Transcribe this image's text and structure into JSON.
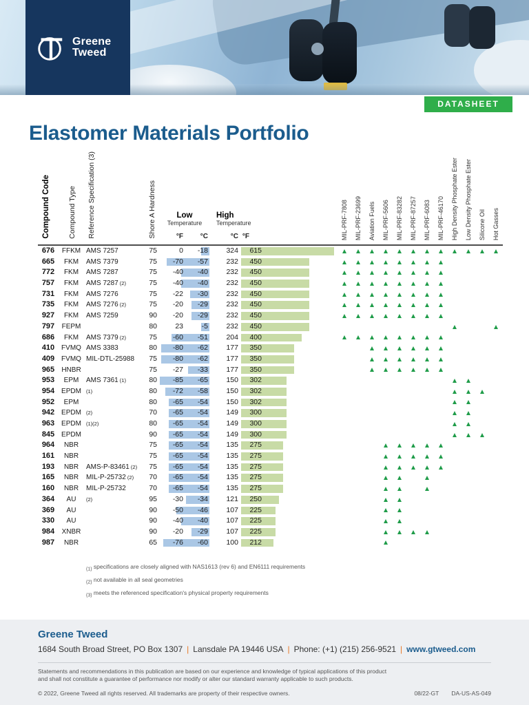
{
  "brand": {
    "line1": "Greene",
    "line2": "Tweed"
  },
  "header": {
    "badge": "DATASHEET",
    "title": "Elastomer Materials Portfolio"
  },
  "colors": {
    "brand_navy": "#16365e",
    "brand_blue": "#1b5c8d",
    "badge_green": "#2fae4a",
    "triangle_green": "#1f9c49",
    "low_bar_blue": "#aac7e5",
    "high_bar_green": "#c8dba6",
    "pipe_orange": "#e87722"
  },
  "table": {
    "columns": {
      "code": "Compound Code",
      "type": "Compound Type",
      "refspec": "Reference Specification (3)",
      "hardness": "Shore A Hardness",
      "low_label": "Low",
      "high_label": "High",
      "temp_label": "Temperature",
      "low_units": [
        "°F",
        "°C"
      ],
      "high_units": [
        "°C",
        "°F"
      ]
    },
    "fluid_columns": [
      "MIL-PRF-7808",
      "MIL-PRF-23699",
      "Aviation Fuels",
      "MIL-PRF-5606",
      "MIL-PRF-83282",
      "MIL-PRF-87257",
      "MIL-PRF-6083",
      "MIL-PRF-46170",
      "High Density Phosphate Ester",
      "Low Density Phosphate Ester",
      "Silicone Oil",
      "Hot Gasses"
    ],
    "rows": [
      {
        "code": "676",
        "type": "FFKM",
        "spec": "AMS 7257",
        "note": "",
        "hardness": 75,
        "low_f": 0,
        "low_c": -18,
        "high_c": 324,
        "high_f": 615,
        "fluids": [
          1,
          1,
          1,
          1,
          1,
          1,
          1,
          1,
          1,
          1,
          1,
          1
        ]
      },
      {
        "code": "665",
        "type": "FKM",
        "spec": "AMS 7379",
        "note": "",
        "hardness": 75,
        "low_f": -70,
        "low_c": -57,
        "high_c": 232,
        "high_f": 450,
        "fluids": [
          1,
          1,
          1,
          1,
          1,
          1,
          1,
          1,
          0,
          0,
          0,
          0
        ]
      },
      {
        "code": "772",
        "type": "FKM",
        "spec": "AMS 7287",
        "note": "",
        "hardness": 75,
        "low_f": -40,
        "low_c": -40,
        "high_c": 232,
        "high_f": 450,
        "fluids": [
          1,
          1,
          1,
          1,
          1,
          1,
          1,
          1,
          0,
          0,
          0,
          0
        ]
      },
      {
        "code": "757",
        "type": "FKM",
        "spec": "AMS 7287",
        "note": "(2)",
        "hardness": 75,
        "low_f": -40,
        "low_c": -40,
        "high_c": 232,
        "high_f": 450,
        "fluids": [
          1,
          1,
          1,
          1,
          1,
          1,
          1,
          1,
          0,
          0,
          0,
          0
        ]
      },
      {
        "code": "731",
        "type": "FKM",
        "spec": "AMS 7276",
        "note": "",
        "hardness": 75,
        "low_f": -22,
        "low_c": -30,
        "high_c": 232,
        "high_f": 450,
        "fluids": [
          1,
          1,
          1,
          1,
          1,
          1,
          1,
          1,
          0,
          0,
          0,
          0
        ]
      },
      {
        "code": "735",
        "type": "FKM",
        "spec": "AMS 7276",
        "note": "(2)",
        "hardness": 75,
        "low_f": -20,
        "low_c": -29,
        "high_c": 232,
        "high_f": 450,
        "fluids": [
          1,
          1,
          1,
          1,
          1,
          1,
          1,
          1,
          0,
          0,
          0,
          0
        ]
      },
      {
        "code": "927",
        "type": "FKM",
        "spec": "AMS 7259",
        "note": "",
        "hardness": 90,
        "low_f": -20,
        "low_c": -29,
        "high_c": 232,
        "high_f": 450,
        "fluids": [
          1,
          1,
          1,
          1,
          1,
          1,
          1,
          1,
          0,
          0,
          0,
          0
        ]
      },
      {
        "code": "797",
        "type": "FEPM",
        "spec": "",
        "note": "",
        "hardness": 80,
        "low_f": 23,
        "low_c": -5,
        "high_c": 232,
        "high_f": 450,
        "fluids": [
          0,
          0,
          0,
          0,
          0,
          0,
          0,
          0,
          1,
          0,
          0,
          1
        ]
      },
      {
        "code": "686",
        "type": "FKM",
        "spec": "AMS 7379",
        "note": "(2)",
        "hardness": 75,
        "low_f": -60,
        "low_c": -51,
        "high_c": 204,
        "high_f": 400,
        "fluids": [
          1,
          1,
          1,
          1,
          1,
          1,
          1,
          1,
          0,
          0,
          0,
          0
        ]
      },
      {
        "code": "410",
        "type": "FVMQ",
        "spec": "AMS 3383",
        "note": "",
        "hardness": 80,
        "low_f": -80,
        "low_c": -62,
        "high_c": 177,
        "high_f": 350,
        "fluids": [
          0,
          0,
          1,
          1,
          1,
          1,
          1,
          1,
          0,
          0,
          0,
          0
        ]
      },
      {
        "code": "409",
        "type": "FVMQ",
        "spec": "MIL-DTL-25988",
        "note": "",
        "hardness": 75,
        "low_f": -80,
        "low_c": -62,
        "high_c": 177,
        "high_f": 350,
        "fluids": [
          0,
          0,
          1,
          1,
          1,
          1,
          1,
          1,
          0,
          0,
          0,
          0
        ]
      },
      {
        "code": "965",
        "type": "HNBR",
        "spec": "",
        "note": "",
        "hardness": 75,
        "low_f": -27,
        "low_c": -33,
        "high_c": 177,
        "high_f": 350,
        "fluids": [
          0,
          0,
          1,
          1,
          1,
          1,
          1,
          1,
          0,
          0,
          0,
          0
        ]
      },
      {
        "code": "953",
        "type": "EPM",
        "spec": "AMS 7361",
        "note": "(1)",
        "hardness": 80,
        "low_f": -85,
        "low_c": -65,
        "high_c": 150,
        "high_f": 302,
        "fluids": [
          0,
          0,
          0,
          0,
          0,
          0,
          0,
          0,
          1,
          1,
          0,
          0
        ]
      },
      {
        "code": "954",
        "type": "EPDM",
        "spec": "",
        "note": "(1)",
        "hardness": 80,
        "low_f": -72,
        "low_c": -58,
        "high_c": 150,
        "high_f": 302,
        "fluids": [
          0,
          0,
          0,
          0,
          0,
          0,
          0,
          0,
          1,
          1,
          1,
          0
        ]
      },
      {
        "code": "952",
        "type": "EPM",
        "spec": "",
        "note": "",
        "hardness": 80,
        "low_f": -65,
        "low_c": -54,
        "high_c": 150,
        "high_f": 302,
        "fluids": [
          0,
          0,
          0,
          0,
          0,
          0,
          0,
          0,
          1,
          1,
          0,
          0
        ]
      },
      {
        "code": "942",
        "type": "EPDM",
        "spec": "",
        "note": "(2)",
        "hardness": 70,
        "low_f": -65,
        "low_c": -54,
        "high_c": 149,
        "high_f": 300,
        "fluids": [
          0,
          0,
          0,
          0,
          0,
          0,
          0,
          0,
          1,
          1,
          0,
          0
        ]
      },
      {
        "code": "963",
        "type": "EPDM",
        "spec": "",
        "note": "(1)(2)",
        "hardness": 80,
        "low_f": -65,
        "low_c": -54,
        "high_c": 149,
        "high_f": 300,
        "fluids": [
          0,
          0,
          0,
          0,
          0,
          0,
          0,
          0,
          1,
          1,
          0,
          0
        ]
      },
      {
        "code": "845",
        "type": "EPDM",
        "spec": "",
        "note": "",
        "hardness": 90,
        "low_f": -65,
        "low_c": -54,
        "high_c": 149,
        "high_f": 300,
        "fluids": [
          0,
          0,
          0,
          0,
          0,
          0,
          0,
          0,
          1,
          1,
          1,
          0
        ]
      },
      {
        "code": "964",
        "type": "NBR",
        "spec": "",
        "note": "",
        "hardness": 75,
        "low_f": -65,
        "low_c": -54,
        "high_c": 135,
        "high_f": 275,
        "fluids": [
          0,
          0,
          0,
          1,
          1,
          1,
          1,
          1,
          0,
          0,
          0,
          0
        ]
      },
      {
        "code": "161",
        "type": "NBR",
        "spec": "",
        "note": "",
        "hardness": 75,
        "low_f": -65,
        "low_c": -54,
        "high_c": 135,
        "high_f": 275,
        "fluids": [
          0,
          0,
          0,
          1,
          1,
          1,
          1,
          1,
          0,
          0,
          0,
          0
        ]
      },
      {
        "code": "193",
        "type": "NBR",
        "spec": "AMS-P-83461",
        "note": "(2)",
        "hardness": 75,
        "low_f": -65,
        "low_c": -54,
        "high_c": 135,
        "high_f": 275,
        "fluids": [
          0,
          0,
          0,
          1,
          1,
          1,
          1,
          1,
          0,
          0,
          0,
          0
        ]
      },
      {
        "code": "165",
        "type": "NBR",
        "spec": "MIL-P-25732",
        "note": "(2)",
        "hardness": 70,
        "low_f": -65,
        "low_c": -54,
        "high_c": 135,
        "high_f": 275,
        "fluids": [
          0,
          0,
          0,
          1,
          1,
          0,
          1,
          0,
          0,
          0,
          0,
          0
        ]
      },
      {
        "code": "160",
        "type": "NBR",
        "spec": "MIL-P-25732",
        "note": "",
        "hardness": 70,
        "low_f": -65,
        "low_c": -54,
        "high_c": 135,
        "high_f": 275,
        "fluids": [
          0,
          0,
          0,
          1,
          1,
          0,
          1,
          0,
          0,
          0,
          0,
          0
        ]
      },
      {
        "code": "364",
        "type": "AU",
        "spec": "",
        "note": "(2)",
        "hardness": 95,
        "low_f": -30,
        "low_c": -34,
        "high_c": 121,
        "high_f": 250,
        "fluids": [
          0,
          0,
          0,
          1,
          1,
          0,
          0,
          0,
          0,
          0,
          0,
          0
        ]
      },
      {
        "code": "369",
        "type": "AU",
        "spec": "",
        "note": "",
        "hardness": 90,
        "low_f": -50,
        "low_c": -46,
        "high_c": 107,
        "high_f": 225,
        "fluids": [
          0,
          0,
          0,
          1,
          1,
          0,
          0,
          0,
          0,
          0,
          0,
          0
        ]
      },
      {
        "code": "330",
        "type": "AU",
        "spec": "",
        "note": "",
        "hardness": 90,
        "low_f": -40,
        "low_c": -40,
        "high_c": 107,
        "high_f": 225,
        "fluids": [
          0,
          0,
          0,
          1,
          1,
          0,
          0,
          0,
          0,
          0,
          0,
          0
        ]
      },
      {
        "code": "984",
        "type": "XNBR",
        "spec": "",
        "note": "",
        "hardness": 90,
        "low_f": -20,
        "low_c": -29,
        "high_c": 107,
        "high_f": 225,
        "fluids": [
          0,
          0,
          0,
          1,
          1,
          1,
          1,
          0,
          0,
          0,
          0,
          0
        ]
      },
      {
        "code": "987",
        "type": "NBR",
        "spec": "",
        "note": "",
        "hardness": 65,
        "low_f": -76,
        "low_c": -60,
        "high_c": 100,
        "high_f": 212,
        "fluids": [
          0,
          0,
          0,
          1,
          0,
          0,
          0,
          0,
          0,
          0,
          0,
          0
        ]
      }
    ]
  },
  "footnotes": [
    {
      "mark": "(1)",
      "text": "specifications are closely aligned with NAS1613 (rev 6) and EN6111 requirements"
    },
    {
      "mark": "(2)",
      "text": "not available in all seal geometries"
    },
    {
      "mark": "(3)",
      "text": "meets the referenced specification's physical property requirements"
    }
  ],
  "footer": {
    "company": "Greene Tweed",
    "address_parts": [
      "1684 South Broad Street, PO Box 1307",
      "Lansdale PA 19446 USA",
      "Phone: (+1) (215) 256-9521",
      "www.gtweed.com"
    ],
    "legal_line1": "Statements and recommendations in this publication are based on our experience and knowledge of typical applications of this product",
    "legal_line2": "and shall not constitute a guarantee of performance nor modify or alter our standard warranty applicable to such products.",
    "copyright": "© 2022, Greene Tweed all rights reserved. All trademarks are property of their respective owners.",
    "doc_code": "08/22-GT",
    "doc_number": "DA-US-AS-049"
  }
}
